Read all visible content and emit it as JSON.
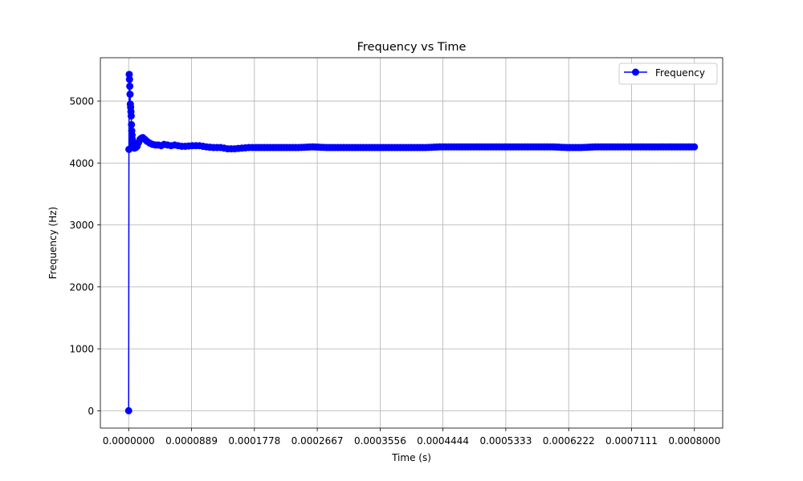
{
  "chart_data": {
    "type": "line",
    "title": "Frequency vs Time",
    "xlabel": "Time (s)",
    "ylabel": "Frequency (Hz)",
    "xlim": [
      -4e-05,
      0.00084
    ],
    "ylim": [
      -280,
      5700
    ],
    "x_ticks": [
      0.0,
      8.89e-05,
      0.0001778,
      0.0002667,
      0.0003556,
      0.0004444,
      0.0005333,
      0.0006222,
      0.0007111,
      0.0008
    ],
    "x_tick_labels": [
      "0.0000000",
      "0.0000889",
      "0.0001778",
      "0.0002667",
      "0.0003556",
      "0.0004444",
      "0.0005333",
      "0.0006222",
      "0.0007111",
      "0.0008000"
    ],
    "y_ticks": [
      0,
      1000,
      2000,
      3000,
      4000,
      5000
    ],
    "y_tick_labels": [
      "0",
      "1000",
      "2000",
      "3000",
      "4000",
      "5000"
    ],
    "grid": true,
    "legend_position": "top-right",
    "series": [
      {
        "name": "Frequency",
        "color": "#0000ff",
        "marker": "circle",
        "x": [
          0.0,
          4e-07,
          8e-07,
          1.2e-06,
          1.6e-06,
          2e-06,
          2.4e-06,
          2.8e-06,
          3.2e-06,
          3.6e-06,
          4e-06,
          4.4e-06,
          4.8e-06,
          5.2e-06,
          5.6e-06,
          6e-06,
          7e-06,
          8e-06,
          9e-06,
          1e-05,
          1.2e-05,
          1.4e-05,
          1.6e-05,
          1.8e-05,
          2e-05,
          2.3e-05,
          2.6e-05,
          3e-05,
          3.4e-05,
          3.8e-05,
          4.2e-05,
          4.6e-05,
          5e-05,
          5.5e-05,
          6e-05,
          6.5e-05,
          7e-05,
          7.5e-05,
          8e-05,
          9e-05,
          0.0001,
          0.00011,
          0.00012,
          0.00013,
          0.00014,
          0.00015,
          0.00016,
          0.00017,
          0.00018,
          0.0002,
          0.00022,
          0.00024,
          0.00026,
          0.00028,
          0.0003,
          0.00032,
          0.00034,
          0.00036,
          0.00038,
          0.0004,
          0.00042,
          0.00044,
          0.00046,
          0.00048,
          0.0005,
          0.00052,
          0.00054,
          0.00056,
          0.00058,
          0.0006,
          0.00062,
          0.00064,
          0.00066,
          0.00068,
          0.0007,
          0.00072,
          0.00074,
          0.00076,
          0.00078,
          0.0008
        ],
        "y": [
          0,
          4220,
          5430,
          5350,
          5240,
          5110,
          4950,
          4900,
          4830,
          4760,
          4620,
          4520,
          4450,
          4380,
          4320,
          4280,
          4250,
          4240,
          4260,
          4250,
          4270,
          4330,
          4380,
          4400,
          4410,
          4380,
          4350,
          4320,
          4300,
          4290,
          4290,
          4280,
          4300,
          4290,
          4280,
          4290,
          4280,
          4270,
          4270,
          4280,
          4280,
          4260,
          4250,
          4250,
          4230,
          4230,
          4240,
          4250,
          4250,
          4250,
          4250,
          4250,
          4260,
          4250,
          4250,
          4250,
          4250,
          4250,
          4250,
          4250,
          4250,
          4260,
          4260,
          4260,
          4260,
          4260,
          4260,
          4260,
          4260,
          4260,
          4250,
          4250,
          4260,
          4260,
          4260,
          4260,
          4260,
          4260,
          4260,
          4260
        ]
      }
    ]
  }
}
